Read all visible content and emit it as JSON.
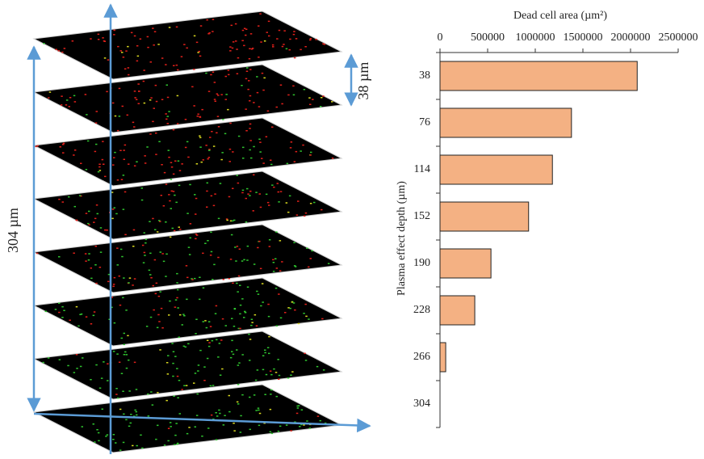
{
  "chart_data": {
    "type": "bar",
    "orientation": "horizontal",
    "x_label": "Dead cell area (µm²)",
    "y_label": "Plasma effect depth (µm)",
    "categories": [
      "38",
      "76",
      "114",
      "152",
      "190",
      "228",
      "266",
      "304"
    ],
    "values": [
      2070000,
      1380000,
      1180000,
      930000,
      535000,
      365000,
      60000,
      0
    ],
    "color": "#f4b183",
    "xlim": [
      0,
      2500000
    ],
    "xticks": [
      0,
      500000,
      1000000,
      1500000,
      2000000,
      2500000
    ],
    "annotations": [
      "304 µm",
      "38 µm"
    ]
  }
}
